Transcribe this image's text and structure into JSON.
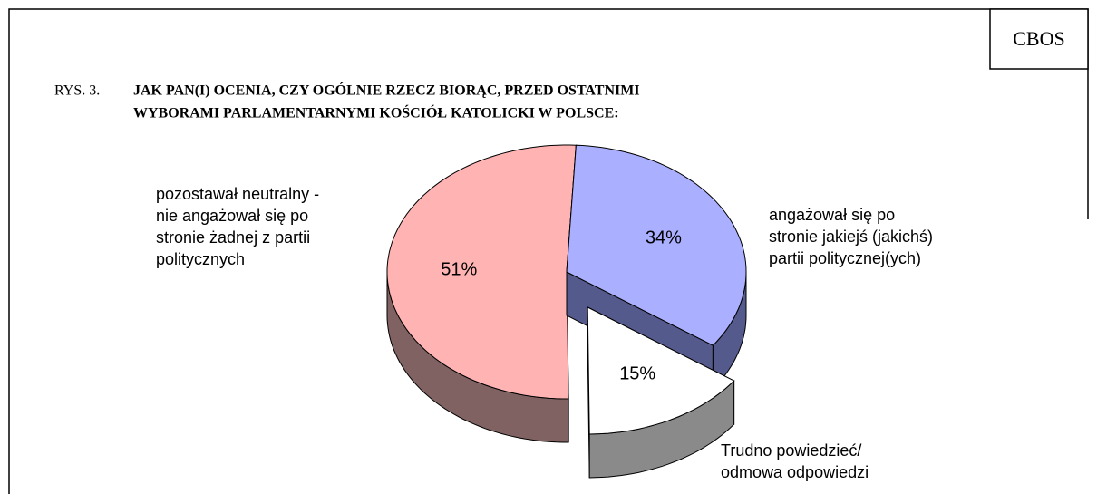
{
  "chart_data": {
    "type": "pie3d",
    "brand": "CBOS",
    "figure_label": "RYS. 3.",
    "title": [
      "JAK PAN(I) OCENIA, CZY OGÓLNIE RZECZ BIORĄC, PRZED OSTATNIMI",
      "WYBORAMI PARLAMENTARNYMI KOŚCIÓŁ KATOLICKI W POLSCE:"
    ],
    "categories": [
      [
        "angażował się po",
        "stronie jakiejś (jakichś)",
        "partii politycznej(ych)"
      ],
      [
        "Trudno powiedzieć/",
        "odmowa odpowiedzi"
      ],
      [
        "pozostawał neutralny -",
        "nie angażował się po",
        "stronie żadnej z partii",
        "politycznych"
      ]
    ],
    "values": [
      34,
      15,
      51
    ],
    "value_labels": [
      "34%",
      "15%",
      "51%"
    ],
    "colors": [
      "#aab0ff",
      "#ffffff",
      "#ffb3b3"
    ],
    "side_colors": [
      "#555a8c",
      "#8a8a8a",
      "#806262"
    ],
    "exploded": [
      false,
      true,
      false
    ]
  }
}
